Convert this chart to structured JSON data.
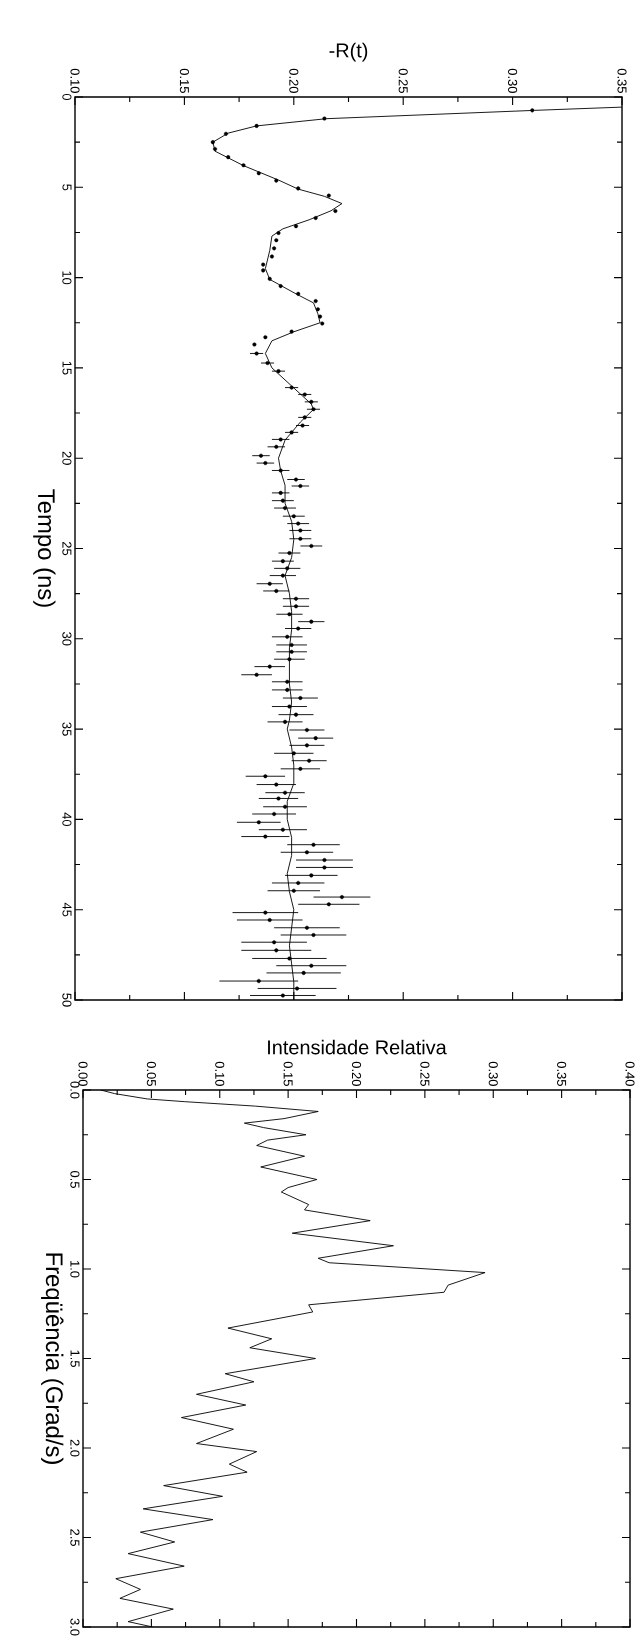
{
  "chart_data": [
    {
      "type": "scatter",
      "xlabel": "-R(t)",
      "ylabel": "Tempo (ns)",
      "xlim": [
        0.1,
        0.35
      ],
      "ylim": [
        50,
        0
      ],
      "xticks": [
        {
          "value": 0.1,
          "label": "0.10"
        },
        {
          "value": 0.15,
          "label": "0.15"
        },
        {
          "value": 0.2,
          "label": "0.20"
        },
        {
          "value": 0.25,
          "label": "0.25"
        },
        {
          "value": 0.3,
          "label": "0.30"
        },
        {
          "value": 0.35,
          "label": "0.35"
        }
      ],
      "yticks": [
        0,
        5,
        10,
        15,
        20,
        25,
        30,
        35,
        40,
        45,
        50
      ],
      "grid": false,
      "legend": false,
      "series": [
        {
          "type": "scatter",
          "marker": "circle",
          "color": "#000000",
          "values": [
            0.74,
            1.19,
            1.6,
            2.04,
            2.5,
            2.88,
            3.33,
            3.78,
            4.22,
            4.63,
            5.06,
            5.46,
            6.31,
            6.7,
            7.15,
            7.53,
            7.93,
            8.38,
            8.83,
            9.28,
            9.6,
            10.07,
            10.47,
            10.9,
            11.3,
            11.75,
            12.16,
            12.54,
            12.99,
            13.3,
            13.7,
            14.2,
            14.73,
            15.18,
            16.09,
            16.47,
            16.88,
            17.29,
            17.74,
            18.19,
            18.57,
            18.96,
            19.37,
            19.86,
            20.27,
            20.68,
            21.18,
            21.54,
            21.92,
            22.35,
            22.76,
            23.21,
            23.62,
            24.0,
            24.46,
            24.86,
            25.25,
            25.7,
            26.1,
            26.5,
            26.95,
            27.35,
            27.78,
            28.2,
            28.64,
            29.05,
            29.43,
            29.89,
            30.34,
            30.72,
            31.13,
            31.54,
            31.99,
            32.38,
            32.83,
            33.28,
            33.75,
            34.2,
            34.6,
            35.05,
            35.5,
            35.9,
            36.34,
            36.75,
            37.2,
            37.61,
            38.07,
            38.52,
            38.84,
            39.3,
            39.7,
            40.16,
            40.57,
            40.95,
            41.4,
            41.82,
            42.25,
            42.66,
            43.1,
            43.52,
            43.95,
            44.3,
            44.7,
            45.16,
            45.57,
            46.0,
            46.4,
            46.8,
            47.25,
            47.7,
            48.1,
            48.5,
            48.95,
            49.36,
            49.75
          ],
          "x": [
            0.309,
            0.214,
            0.183,
            0.169,
            0.163,
            0.164,
            0.17,
            0.177,
            0.184,
            0.192,
            0.202,
            0.216,
            0.219,
            0.21,
            0.201,
            0.193,
            0.192,
            0.191,
            0.19,
            0.186,
            0.186,
            0.189,
            0.194,
            0.202,
            0.21,
            0.211,
            0.212,
            0.213,
            0.199,
            0.187,
            0.182,
            0.183,
            0.188,
            0.193,
            0.199,
            0.205,
            0.208,
            0.209,
            0.205,
            0.204,
            0.199,
            0.194,
            0.192,
            0.185,
            0.187,
            0.194,
            0.201,
            0.203,
            0.194,
            0.195,
            0.196,
            0.2,
            0.202,
            0.203,
            0.203,
            0.208,
            0.198,
            0.195,
            0.197,
            0.195,
            0.189,
            0.192,
            0.201,
            0.201,
            0.198,
            0.208,
            0.202,
            0.197,
            0.199,
            0.199,
            0.198,
            0.189,
            0.183,
            0.197,
            0.197,
            0.203,
            0.198,
            0.201,
            0.196,
            0.206,
            0.21,
            0.206,
            0.2,
            0.207,
            0.203,
            0.187,
            0.192,
            0.196,
            0.193,
            0.196,
            0.191,
            0.184,
            0.195,
            0.187,
            0.209,
            0.206,
            0.214,
            0.214,
            0.208,
            0.202,
            0.2,
            0.222,
            0.216,
            0.187,
            0.189,
            0.206,
            0.209,
            0.191,
            0.192,
            0.198,
            0.208,
            0.2045,
            0.184,
            0.2015,
            0.195
          ],
          "xerrors": [
            null,
            null,
            null,
            null,
            null,
            null,
            null,
            null,
            null,
            null,
            null,
            null,
            null,
            null,
            null,
            null,
            null,
            null,
            null,
            null,
            null,
            null,
            null,
            null,
            null,
            null,
            null,
            null,
            null,
            null,
            null,
            0.003,
            0.003,
            0.003,
            0.003,
            0.003,
            0.003,
            0.003,
            0.003,
            0.003,
            0.003,
            0.004,
            0.004,
            0.004,
            0.004,
            0.004,
            0.004,
            0.004,
            0.004,
            0.005,
            0.005,
            0.005,
            0.005,
            0.005,
            0.005,
            0.005,
            0.005,
            0.005,
            0.006,
            0.006,
            0.006,
            0.006,
            0.006,
            0.006,
            0.006,
            0.006,
            0.006,
            0.007,
            0.007,
            0.007,
            0.007,
            0.007,
            0.007,
            0.007,
            0.007,
            0.008,
            0.008,
            0.008,
            0.008,
            0.008,
            0.008,
            0.008,
            0.009,
            0.008,
            0.009,
            0.009,
            0.009,
            0.009,
            0.009,
            0.01,
            0.01,
            0.01,
            0.011,
            0.011,
            0.012,
            0.012,
            0.013,
            0.013,
            0.012,
            0.012,
            0.012,
            0.013,
            0.014,
            0.015,
            0.015,
            0.015,
            0.015,
            0.015,
            0.016,
            0.017,
            0.016,
            0.017,
            0.018,
            0.018,
            0.015
          ]
        },
        {
          "type": "line",
          "marker": "none",
          "color": "#000000",
          "values": [
            0.56,
            0.74,
            1.2,
            1.6,
            2.0,
            2.5,
            3.0,
            3.8,
            4.6,
            5.1,
            5.5,
            5.9,
            6.3,
            6.8,
            7.3,
            7.7,
            8.5,
            9.5,
            10.1,
            10.9,
            11.4,
            12.0,
            12.5,
            13.0,
            13.5,
            14.2,
            15.0,
            16.0,
            17.0,
            17.3,
            18.0,
            19.0,
            20.0,
            20.7,
            21.5,
            22.5,
            23.5,
            24.5,
            25.5,
            26.5,
            27.5,
            28.5,
            29.5,
            30.5,
            32.5,
            33.5,
            34.5,
            35.0,
            36.0,
            37.0,
            38.0,
            39.0,
            40.0,
            41.0,
            42.0,
            43.0,
            44.0,
            45.0,
            46.0,
            47.0,
            48.0,
            49.0,
            50.0
          ],
          "x": [
            0.35,
            0.31,
            0.215,
            0.183,
            0.17,
            0.163,
            0.164,
            0.177,
            0.193,
            0.202,
            0.214,
            0.222,
            0.217,
            0.207,
            0.195,
            0.19,
            0.189,
            0.187,
            0.189,
            0.201,
            0.209,
            0.211,
            0.212,
            0.2,
            0.19,
            0.187,
            0.19,
            0.199,
            0.208,
            0.209,
            0.203,
            0.196,
            0.193,
            0.194,
            0.196,
            0.196,
            0.199,
            0.2,
            0.199,
            0.196,
            0.198,
            0.199,
            0.199,
            0.198,
            0.198,
            0.199,
            0.198,
            0.197,
            0.199,
            0.2,
            0.2,
            0.197,
            0.197,
            0.199,
            0.199,
            0.197,
            0.198,
            0.2,
            0.199,
            0.198,
            0.199,
            0.2,
            0.2
          ]
        }
      ]
    },
    {
      "type": "line",
      "xlabel": "Intensidade Relativa",
      "ylabel": "Freqüência (Grad/s)",
      "xlim": [
        0,
        0.4
      ],
      "ylim": [
        3,
        0
      ],
      "xticks": [
        {
          "value": 0,
          "label": "0.00"
        },
        {
          "value": 0.05,
          "label": "0.05"
        },
        {
          "value": 0.1,
          "label": "0.10"
        },
        {
          "value": 0.15,
          "label": "0.15"
        },
        {
          "value": 0.2,
          "label": "0.20"
        },
        {
          "value": 0.25,
          "label": "0.25"
        },
        {
          "value": 0.3,
          "label": "0.30"
        },
        {
          "value": 0.35,
          "label": "0.35"
        },
        {
          "value": 0.4,
          "label": "0.40"
        }
      ],
      "yticks": [
        {
          "value": 0,
          "label": "0.0"
        },
        {
          "value": 0.5,
          "label": "0.5"
        },
        {
          "value": 1,
          "label": "1.0"
        },
        {
          "value": 1.5,
          "label": "1.5"
        },
        {
          "value": 2,
          "label": "2.0"
        },
        {
          "value": 2.5,
          "label": "2.5"
        },
        {
          "value": 3,
          "label": "3.0"
        }
      ],
      "grid": false,
      "legend": false,
      "color": "#000000",
      "values": [
        0.0,
        0.02,
        0.05,
        0.065,
        0.09,
        0.12,
        0.16,
        0.185,
        0.21,
        0.25,
        0.28,
        0.31,
        0.37,
        0.43,
        0.5,
        0.545,
        0.57,
        0.64,
        0.67,
        0.73,
        0.8,
        0.87,
        0.94,
        0.965,
        1.02,
        1.09,
        1.13,
        1.2,
        1.24,
        1.33,
        1.39,
        1.44,
        1.5,
        1.585,
        1.63,
        1.7,
        1.76,
        1.83,
        1.895,
        1.975,
        2.02,
        2.09,
        2.135,
        2.21,
        2.27,
        2.34,
        2.4,
        2.47,
        2.525,
        2.59,
        2.66,
        2.73,
        2.79,
        2.84,
        2.9,
        2.97,
        3.0
      ],
      "x": [
        0.013,
        0.023,
        0.047,
        0.074,
        0.126,
        0.172,
        0.147,
        0.118,
        0.132,
        0.163,
        0.135,
        0.127,
        0.162,
        0.13,
        0.171,
        0.15,
        0.145,
        0.165,
        0.162,
        0.21,
        0.153,
        0.227,
        0.172,
        0.18,
        0.294,
        0.267,
        0.264,
        0.165,
        0.168,
        0.106,
        0.138,
        0.122,
        0.17,
        0.104,
        0.125,
        0.083,
        0.119,
        0.072,
        0.11,
        0.083,
        0.127,
        0.107,
        0.12,
        0.059,
        0.102,
        0.044,
        0.095,
        0.042,
        0.067,
        0.033,
        0.074,
        0.024,
        0.042,
        0.027,
        0.066,
        0.033,
        0.051
      ]
    }
  ]
}
